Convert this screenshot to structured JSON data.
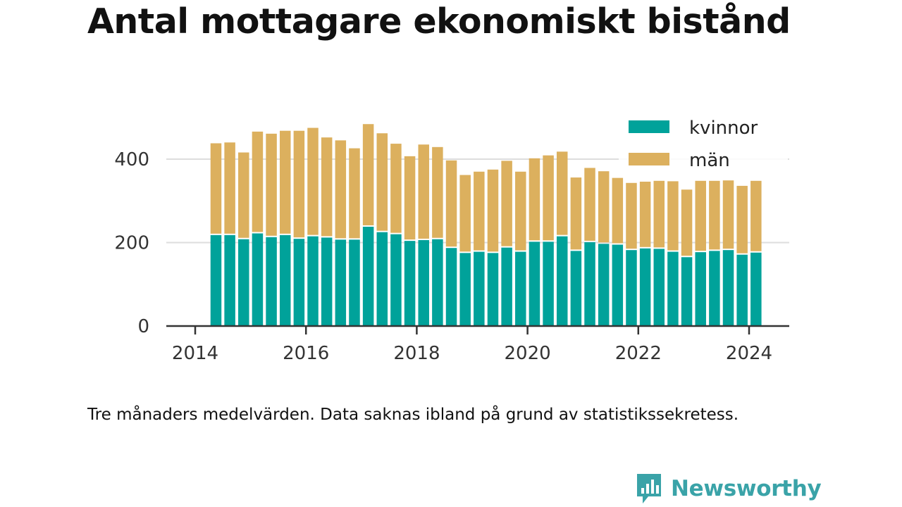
{
  "title": "Antal mottagare ekonomiskt bistånd",
  "caption": "Tre månaders medelvärden. Data saknas ibland på grund av statistikssekretess.",
  "brand": {
    "name": "Newsworthy",
    "icon": "newsworthy-chart-icon"
  },
  "colors": {
    "kvinnor": "#00a29a",
    "man": "#dcb05e",
    "axis": "#333333",
    "grid": "#dddddd",
    "brand": "#3aa3a8"
  },
  "chart_data": {
    "type": "bar",
    "stacked": true,
    "title": "Antal mottagare ekonomiskt bistånd",
    "x_ticks": [
      "2014",
      "2016",
      "2018",
      "2020",
      "2022",
      "2024"
    ],
    "y_ticks": [
      "0",
      "200",
      "400"
    ],
    "ylim": [
      0,
      500
    ],
    "xlim": [
      2014.0,
      2025.2
    ],
    "grid": true,
    "legend_position": "top-right",
    "x": [
      2014.375,
      2014.625,
      2014.875,
      2015.125,
      2015.375,
      2015.625,
      2015.875,
      2016.125,
      2016.375,
      2016.625,
      2016.875,
      2017.125,
      2017.375,
      2017.625,
      2017.875,
      2018.125,
      2018.375,
      2018.625,
      2018.875,
      2019.125,
      2019.375,
      2019.625,
      2019.875,
      2020.125,
      2020.375,
      2020.625,
      2020.875,
      2021.125,
      2021.375,
      2021.625,
      2021.875,
      2022.125,
      2022.375,
      2022.625,
      2022.875,
      2023.125,
      2023.375,
      2023.625,
      2023.875,
      2024.125
    ],
    "series": [
      {
        "name": "kvinnor",
        "values": [
          218,
          218,
          208,
          222,
          213,
          218,
          209,
          215,
          212,
          207,
          207,
          238,
          225,
          220,
          204,
          206,
          208,
          187,
          175,
          178,
          175,
          188,
          178,
          202,
          202,
          215,
          180,
          201,
          197,
          195,
          182,
          186,
          185,
          178,
          165,
          177,
          180,
          182,
          171,
          176
        ]
      },
      {
        "name": "män",
        "values": [
          220,
          222,
          208,
          244,
          248,
          250,
          259,
          260,
          240,
          238,
          219,
          246,
          237,
          217,
          203,
          229,
          221,
          210,
          187,
          192,
          200,
          208,
          192,
          200,
          207,
          203,
          176,
          178,
          174,
          160,
          161,
          160,
          163,
          169,
          162,
          171,
          168,
          167,
          165,
          172
        ]
      }
    ]
  }
}
